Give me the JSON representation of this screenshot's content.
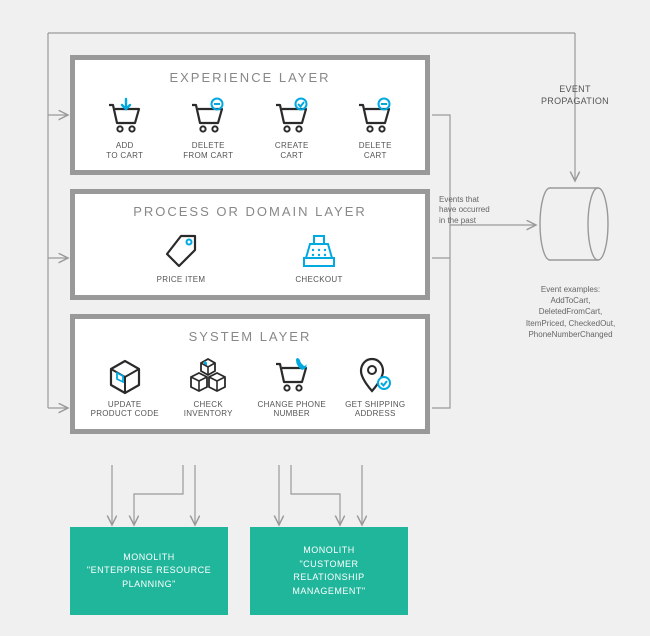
{
  "diagram": {
    "type": "flowchart",
    "background_color": "#f0f0f0",
    "layer_border_color": "#999999",
    "layer_bg_color": "#ffffff",
    "accent_color": "#00a9e0",
    "icon_dark": "#2a2a2a",
    "monolith_color": "#1fb69b",
    "connector_color": "#999999",
    "text_color": "#555555"
  },
  "layers": {
    "experience": {
      "title": "EXPERIENCE LAYER",
      "items": [
        {
          "label": "ADD\nTO CART",
          "icon": "cart-add"
        },
        {
          "label": "DELETE\nFROM CART",
          "icon": "cart-delete"
        },
        {
          "label": "CREATE\nCART",
          "icon": "cart-create"
        },
        {
          "label": "DELETE\nCART",
          "icon": "cart-remove"
        }
      ]
    },
    "process": {
      "title": "PROCESS OR DOMAIN LAYER",
      "items": [
        {
          "label": "PRICE ITEM",
          "icon": "price-tag"
        },
        {
          "label": "CHECKOUT",
          "icon": "register"
        }
      ]
    },
    "system": {
      "title": "SYSTEM LAYER",
      "items": [
        {
          "label": "UPDATE\nPRODUCT CODE",
          "icon": "package"
        },
        {
          "label": "CHECK\nINVENTORY",
          "icon": "boxes"
        },
        {
          "label": "CHANGE PHONE\nNUMBER",
          "icon": "phone-cart"
        },
        {
          "label": "GET SHIPPING\nADDRESS",
          "icon": "location"
        }
      ]
    }
  },
  "monoliths": {
    "erp": "MONOLITH\n\"ENTERPRISE RESOURCE\nPLANNING\"",
    "crm": "MONOLITH\n\"CUSTOMER\nRELATIONSHIP\nMANAGEMENT\""
  },
  "labels": {
    "event_propagation": "EVENT\nPROPAGATION",
    "events_occurred": "Events that\nhave occurred\nin the past",
    "event_examples_title": "Event examples:",
    "event_examples_body": "AddToCart,\nDeletedFromCart,\nItemPriced, CheckedOut,\nPhoneNumberChanged"
  }
}
